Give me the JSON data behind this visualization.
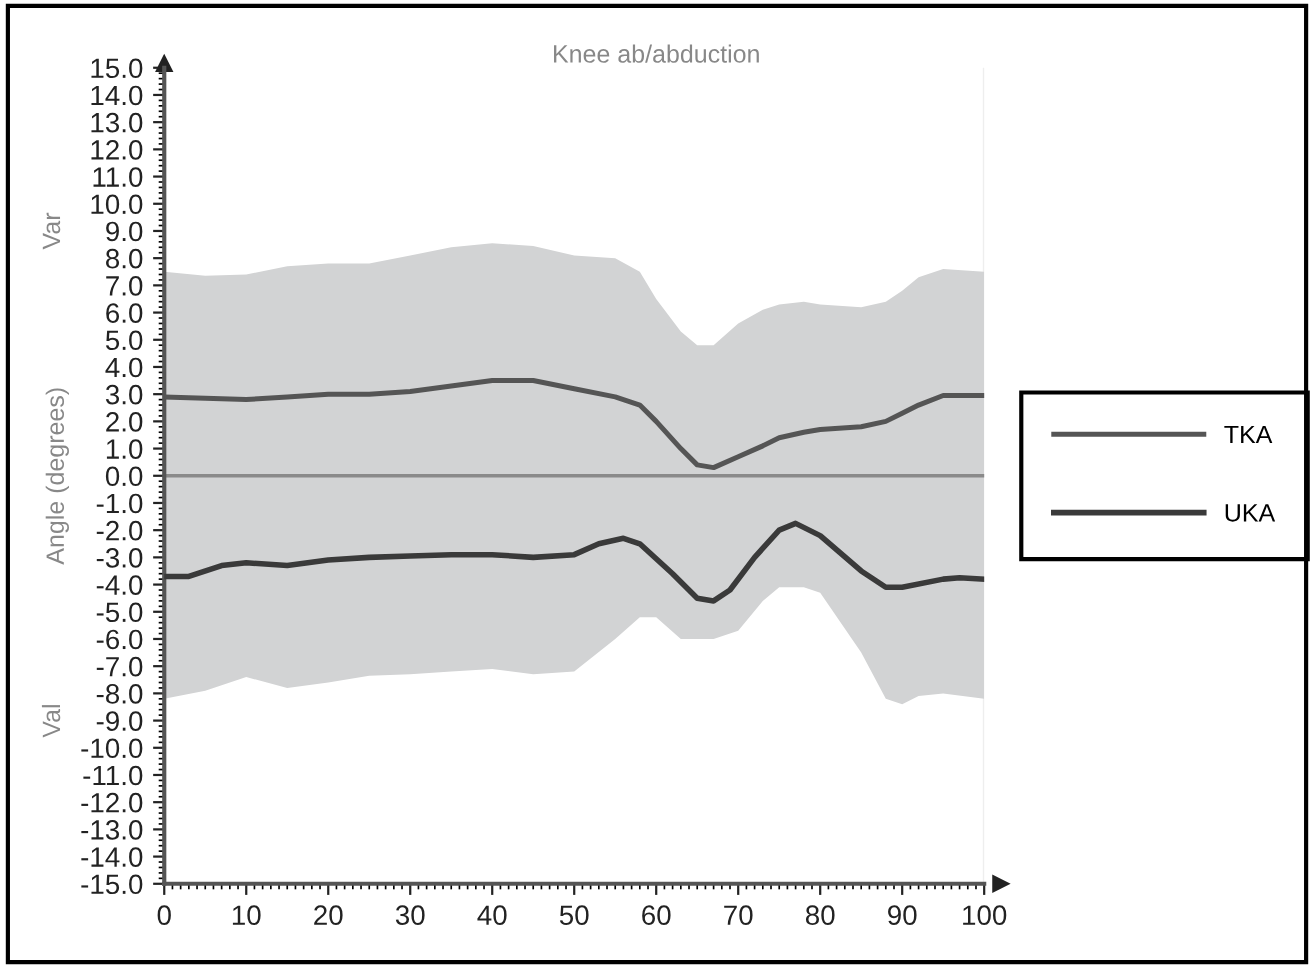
{
  "chart_data": {
    "type": "line",
    "title": "Knee ab/abduction",
    "ylabel": "Angle (degrees)",
    "annotations": [
      "Var",
      "Val"
    ],
    "xlim": [
      0,
      100
    ],
    "xticks": [
      0,
      10,
      20,
      30,
      40,
      50,
      60,
      70,
      80,
      90,
      100
    ],
    "ylim": [
      -15,
      15
    ],
    "yticks": [
      {
        "value": 15,
        "label": "15.0"
      },
      {
        "value": 14,
        "label": "14.0"
      },
      {
        "value": 13,
        "label": "13.0"
      },
      {
        "value": 12,
        "label": "12.0"
      },
      {
        "value": 11,
        "label": "11.0"
      },
      {
        "value": 10,
        "label": "10.0"
      },
      {
        "value": 9,
        "label": "9.0"
      },
      {
        "value": 8,
        "label": "8.0"
      },
      {
        "value": 7,
        "label": "7.0"
      },
      {
        "value": 6,
        "label": "6.0"
      },
      {
        "value": 5,
        "label": "5.0"
      },
      {
        "value": 4,
        "label": "4.0"
      },
      {
        "value": 3,
        "label": "3.0"
      },
      {
        "value": 2,
        "label": "2.0"
      },
      {
        "value": 1,
        "label": "1.0"
      },
      {
        "value": 0,
        "label": "0.0"
      },
      {
        "value": -1,
        "label": "-1.0"
      },
      {
        "value": -2,
        "label": "-2.0"
      },
      {
        "value": -3,
        "label": "-3.0"
      },
      {
        "value": -4,
        "label": "-4.0"
      },
      {
        "value": -5,
        "label": "-5.0"
      },
      {
        "value": -6,
        "label": "-6.0"
      },
      {
        "value": -7,
        "label": "-7.0"
      },
      {
        "value": -8,
        "label": "-8.0"
      },
      {
        "value": -9,
        "label": "-9.0"
      },
      {
        "value": -10,
        "label": "-10.0"
      },
      {
        "value": -11,
        "label": "-11.0"
      },
      {
        "value": -12,
        "label": "-12.0"
      },
      {
        "value": -13,
        "label": "-13.0"
      },
      {
        "value": -14,
        "label": "-14.0"
      },
      {
        "value": -15,
        "label": "-15.0"
      }
    ],
    "ref_lines": [
      {
        "axis": "y",
        "value": 0,
        "color": "#8a8a8a"
      }
    ],
    "grid": false,
    "legend": "right",
    "marker": "none",
    "line_style": "solid",
    "series": [
      {
        "name": "TKA",
        "color": "#555555",
        "x": [
          0,
          5,
          10,
          15,
          20,
          25,
          30,
          35,
          40,
          45,
          50,
          55,
          58,
          60,
          63,
          65,
          67,
          70,
          73,
          75,
          78,
          80,
          85,
          88,
          90,
          92,
          95,
          100
        ],
        "values": [
          2.9,
          2.85,
          2.8,
          2.9,
          3.0,
          3.0,
          3.1,
          3.3,
          3.5,
          3.5,
          3.2,
          2.9,
          2.6,
          2.0,
          1.0,
          0.4,
          0.3,
          0.7,
          1.1,
          1.4,
          1.6,
          1.7,
          1.8,
          2.0,
          2.3,
          2.6,
          2.95,
          2.95
        ],
        "upper": [
          7.5,
          7.35,
          7.4,
          7.7,
          7.8,
          7.8,
          8.1,
          8.4,
          8.55,
          8.45,
          8.1,
          8.0,
          7.5,
          6.5,
          5.3,
          4.8,
          4.8,
          5.6,
          6.1,
          6.3,
          6.4,
          6.3,
          6.2,
          6.4,
          6.8,
          7.3,
          7.6,
          7.5
        ],
        "lower": [
          -8.2,
          -7.9,
          -7.4,
          -7.8,
          -7.6,
          -7.35,
          -7.3,
          -7.2,
          -7.1,
          -7.3,
          -7.2,
          -6.0,
          -5.2,
          -5.2,
          -6.0,
          -6.0,
          -6.0,
          -5.7,
          -4.6,
          -4.1,
          -4.1,
          -4.3,
          -6.5,
          -8.2,
          -8.4,
          -8.1,
          -8.0,
          -8.2
        ]
      },
      {
        "name": "UKA",
        "color": "#3a3a3a",
        "x": [
          0,
          3,
          7,
          10,
          15,
          20,
          25,
          30,
          35,
          40,
          45,
          50,
          53,
          56,
          58,
          62,
          65,
          67,
          69,
          72,
          75,
          77,
          80,
          85,
          88,
          90,
          95,
          97,
          100
        ],
        "values": [
          -3.7,
          -3.7,
          -3.3,
          -3.2,
          -3.3,
          -3.1,
          -3.0,
          -2.95,
          -2.9,
          -2.9,
          -3.0,
          -2.9,
          -2.5,
          -2.3,
          -2.5,
          -3.6,
          -4.5,
          -4.6,
          -4.2,
          -3.0,
          -2.0,
          -1.75,
          -2.2,
          -3.5,
          -4.1,
          -4.1,
          -3.8,
          -3.75,
          -3.8
        ]
      }
    ]
  }
}
